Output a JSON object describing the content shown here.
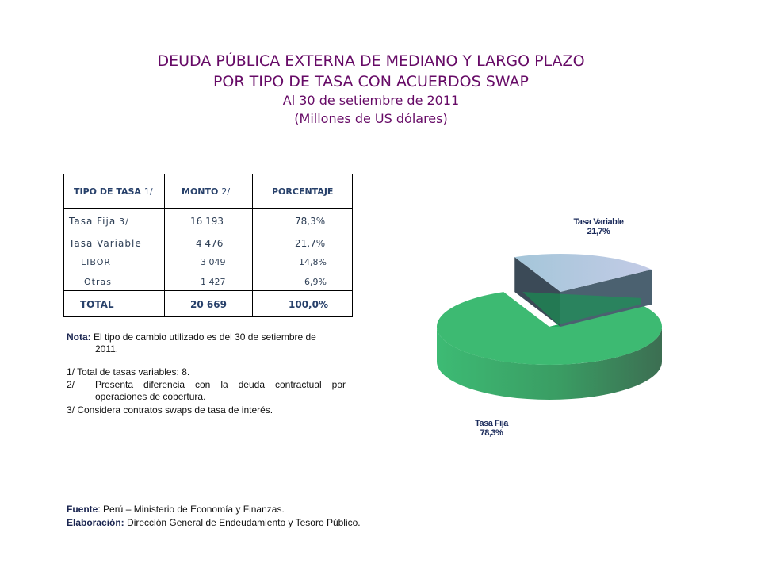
{
  "title": {
    "line1": "DEUDA PÚBLICA EXTERNA DE MEDIANO Y LARGO PLAZO",
    "line2": "POR TIPO DE TASA CON ACUERDOS  SWAP",
    "line3": "Al 30 de setiembre de 2011",
    "line4": "(Millones de US dólares)"
  },
  "table": {
    "headers": [
      {
        "label": "TIPO DE TASA",
        "note": "1/"
      },
      {
        "label": "MONTO",
        "note": "2/"
      },
      {
        "label": "PORCENTAJE",
        "note": ""
      }
    ],
    "rows": [
      {
        "tipo": "Tasa Fija",
        "note": "3/",
        "monto": "16 193",
        "pct": "78,3%"
      },
      {
        "tipo": "Tasa Variable",
        "monto": "4 476",
        "pct": "21,7%"
      },
      {
        "tipo": "LIBOR",
        "monto": "3 049",
        "pct": "14,8%"
      },
      {
        "tipo": "Otras",
        "monto": "1 427",
        "pct": "6,9%"
      }
    ],
    "total": {
      "tipo": "TOTAL",
      "monto": "20 669",
      "pct": "100,0%"
    }
  },
  "notes": {
    "nota_label": "Nota:",
    "nota_text": "El tipo de cambio utilizado es del 30 de setiembre de",
    "nota_text2": "2011.",
    "n1": "1/  Total de tasas variables: 8.",
    "n2_num": "2/",
    "n2_text": "Presenta diferencia con la deuda contractual por",
    "n2_text2": "operaciones de cobertura.",
    "n3": "3/  Considera contratos swaps de tasa de interés.",
    "fuente_label": "Fuente",
    "fuente_text": ": Perú – Ministerio de Economía y Finanzas.",
    "elab_label": "Elaboración:",
    "elab_text": "  Dirección  General de Endeudamiento y Tesoro Público."
  },
  "chart_data": {
    "type": "pie",
    "style": "3d-exploded",
    "categories": [
      "Tasa Fija",
      "Tasa Variable"
    ],
    "values": [
      78.3,
      21.7
    ],
    "labels": [
      {
        "name": "Tasa Fija",
        "value": "78,3%"
      },
      {
        "name": "Tasa Variable",
        "value": "21,7%"
      }
    ],
    "colors": [
      "#3dba72",
      "#a9c4dc"
    ],
    "exploded": "Tasa Variable"
  }
}
